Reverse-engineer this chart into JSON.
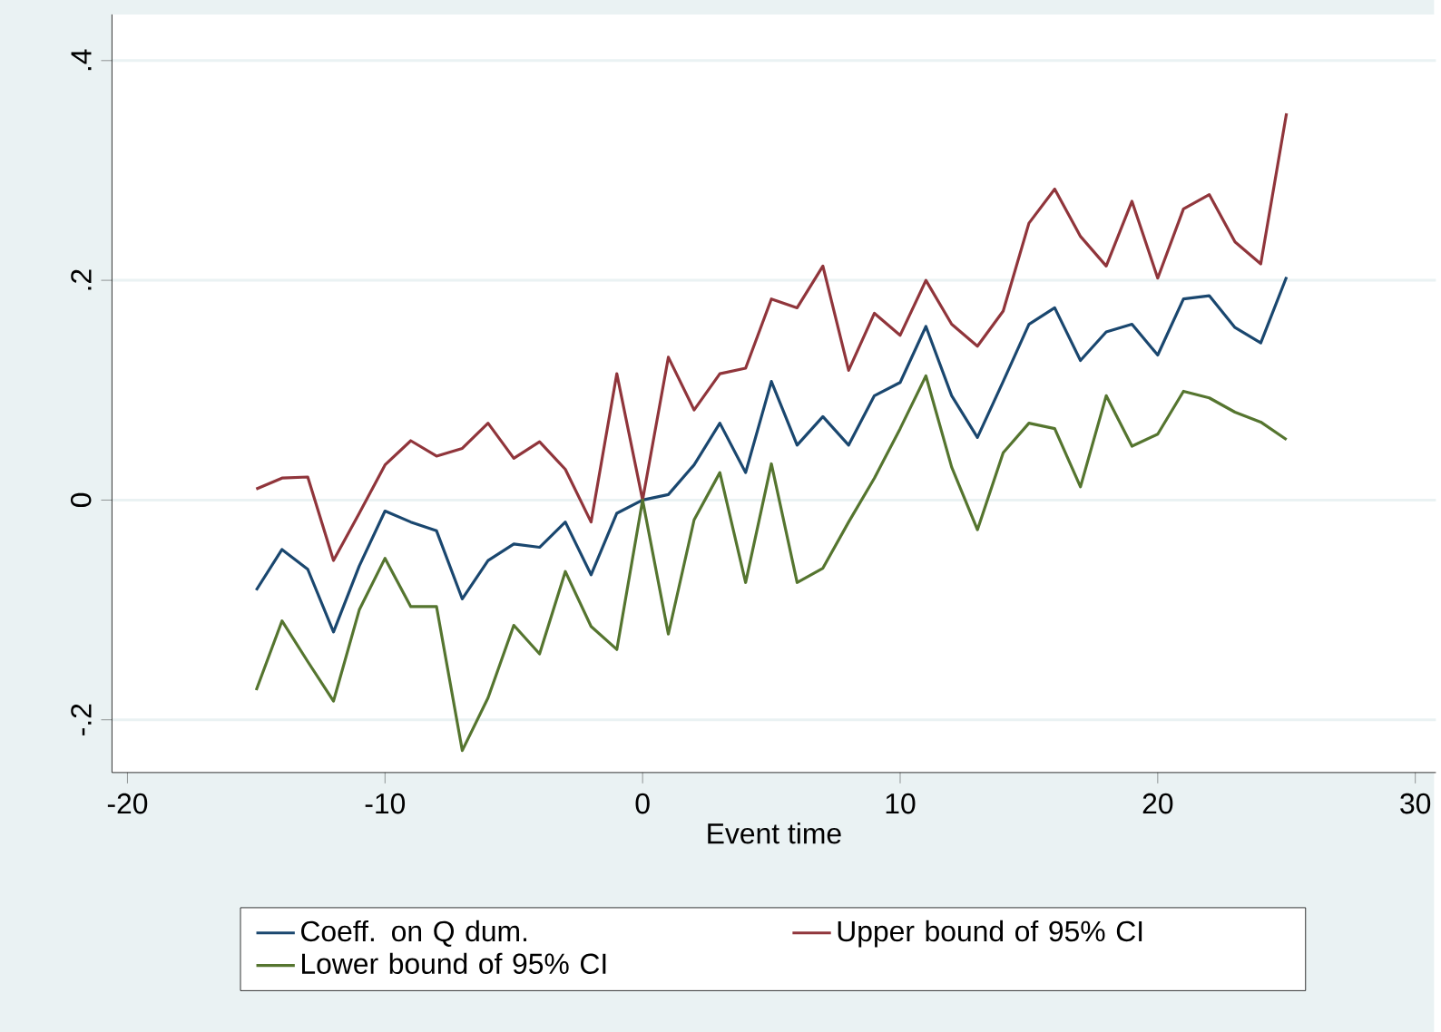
{
  "chart_data": {
    "type": "line",
    "xlabel": "Event time",
    "x": [
      -15,
      -14,
      -13,
      -12,
      -11,
      -10,
      -9,
      -8,
      -7,
      -6,
      -5,
      -4,
      -3,
      -2,
      -1,
      0,
      1,
      2,
      3,
      4,
      5,
      6,
      7,
      8,
      9,
      10,
      11,
      12,
      13,
      14,
      15,
      16,
      17,
      18,
      19,
      20,
      21,
      22,
      23,
      24,
      25
    ],
    "series": [
      {
        "name": "Coeff. on Q dum.",
        "color": "#1a476f",
        "values": [
          -0.082,
          -0.045,
          -0.063,
          -0.12,
          -0.06,
          -0.01,
          -0.02,
          -0.028,
          -0.09,
          -0.055,
          -0.04,
          -0.043,
          -0.02,
          -0.068,
          -0.012,
          0,
          0.005,
          0.032,
          0.07,
          0.025,
          0.108,
          0.05,
          0.076,
          0.05,
          0.095,
          0.107,
          0.158,
          0.095,
          0.057,
          0.108,
          0.16,
          0.175,
          0.127,
          0.153,
          0.16,
          0.132,
          0.183,
          0.186,
          0.157,
          0.143,
          0.203
        ]
      },
      {
        "name": "Upper bound of 95% CI",
        "color": "#90353b",
        "values": [
          0.01,
          0.02,
          0.021,
          -0.055,
          -0.012,
          0.032,
          0.054,
          0.04,
          0.047,
          0.07,
          0.038,
          0.053,
          0.028,
          -0.02,
          0.115,
          0,
          0.13,
          0.082,
          0.115,
          0.12,
          0.183,
          0.175,
          0.213,
          0.118,
          0.17,
          0.15,
          0.2,
          0.16,
          0.14,
          0.172,
          0.252,
          0.283,
          0.24,
          0.213,
          0.272,
          0.202,
          0.265,
          0.278,
          0.235,
          0.215,
          0.352
        ]
      },
      {
        "name": "Lower bound of 95% CI",
        "color": "#55752f",
        "values": [
          -0.173,
          -0.11,
          -0.147,
          -0.183,
          -0.1,
          -0.053,
          -0.097,
          -0.097,
          -0.228,
          -0.18,
          -0.114,
          -0.14,
          -0.065,
          -0.115,
          -0.136,
          0,
          -0.122,
          -0.018,
          0.025,
          -0.075,
          0.033,
          -0.075,
          -0.062,
          -0.02,
          0.02,
          0.065,
          0.113,
          0.03,
          -0.027,
          0.043,
          0.07,
          0.065,
          0.012,
          0.095,
          0.049,
          0.06,
          0.099,
          0.093,
          0.08,
          0.071,
          0.055
        ]
      }
    ],
    "xlim": [
      -20.6,
      30.8
    ],
    "ylim": [
      -0.248,
      0.442
    ],
    "xticks": [
      -20,
      -10,
      0,
      10,
      20,
      30
    ],
    "yticks": [
      {
        "value": -0.2,
        "label": "-.2"
      },
      {
        "value": 0,
        "label": "0"
      },
      {
        "value": 0.2,
        "label": ".2"
      },
      {
        "value": 0.4,
        "label": ".4"
      }
    ],
    "grid": "y",
    "legend": "bottom",
    "marker": "none",
    "line_style": "solid"
  }
}
